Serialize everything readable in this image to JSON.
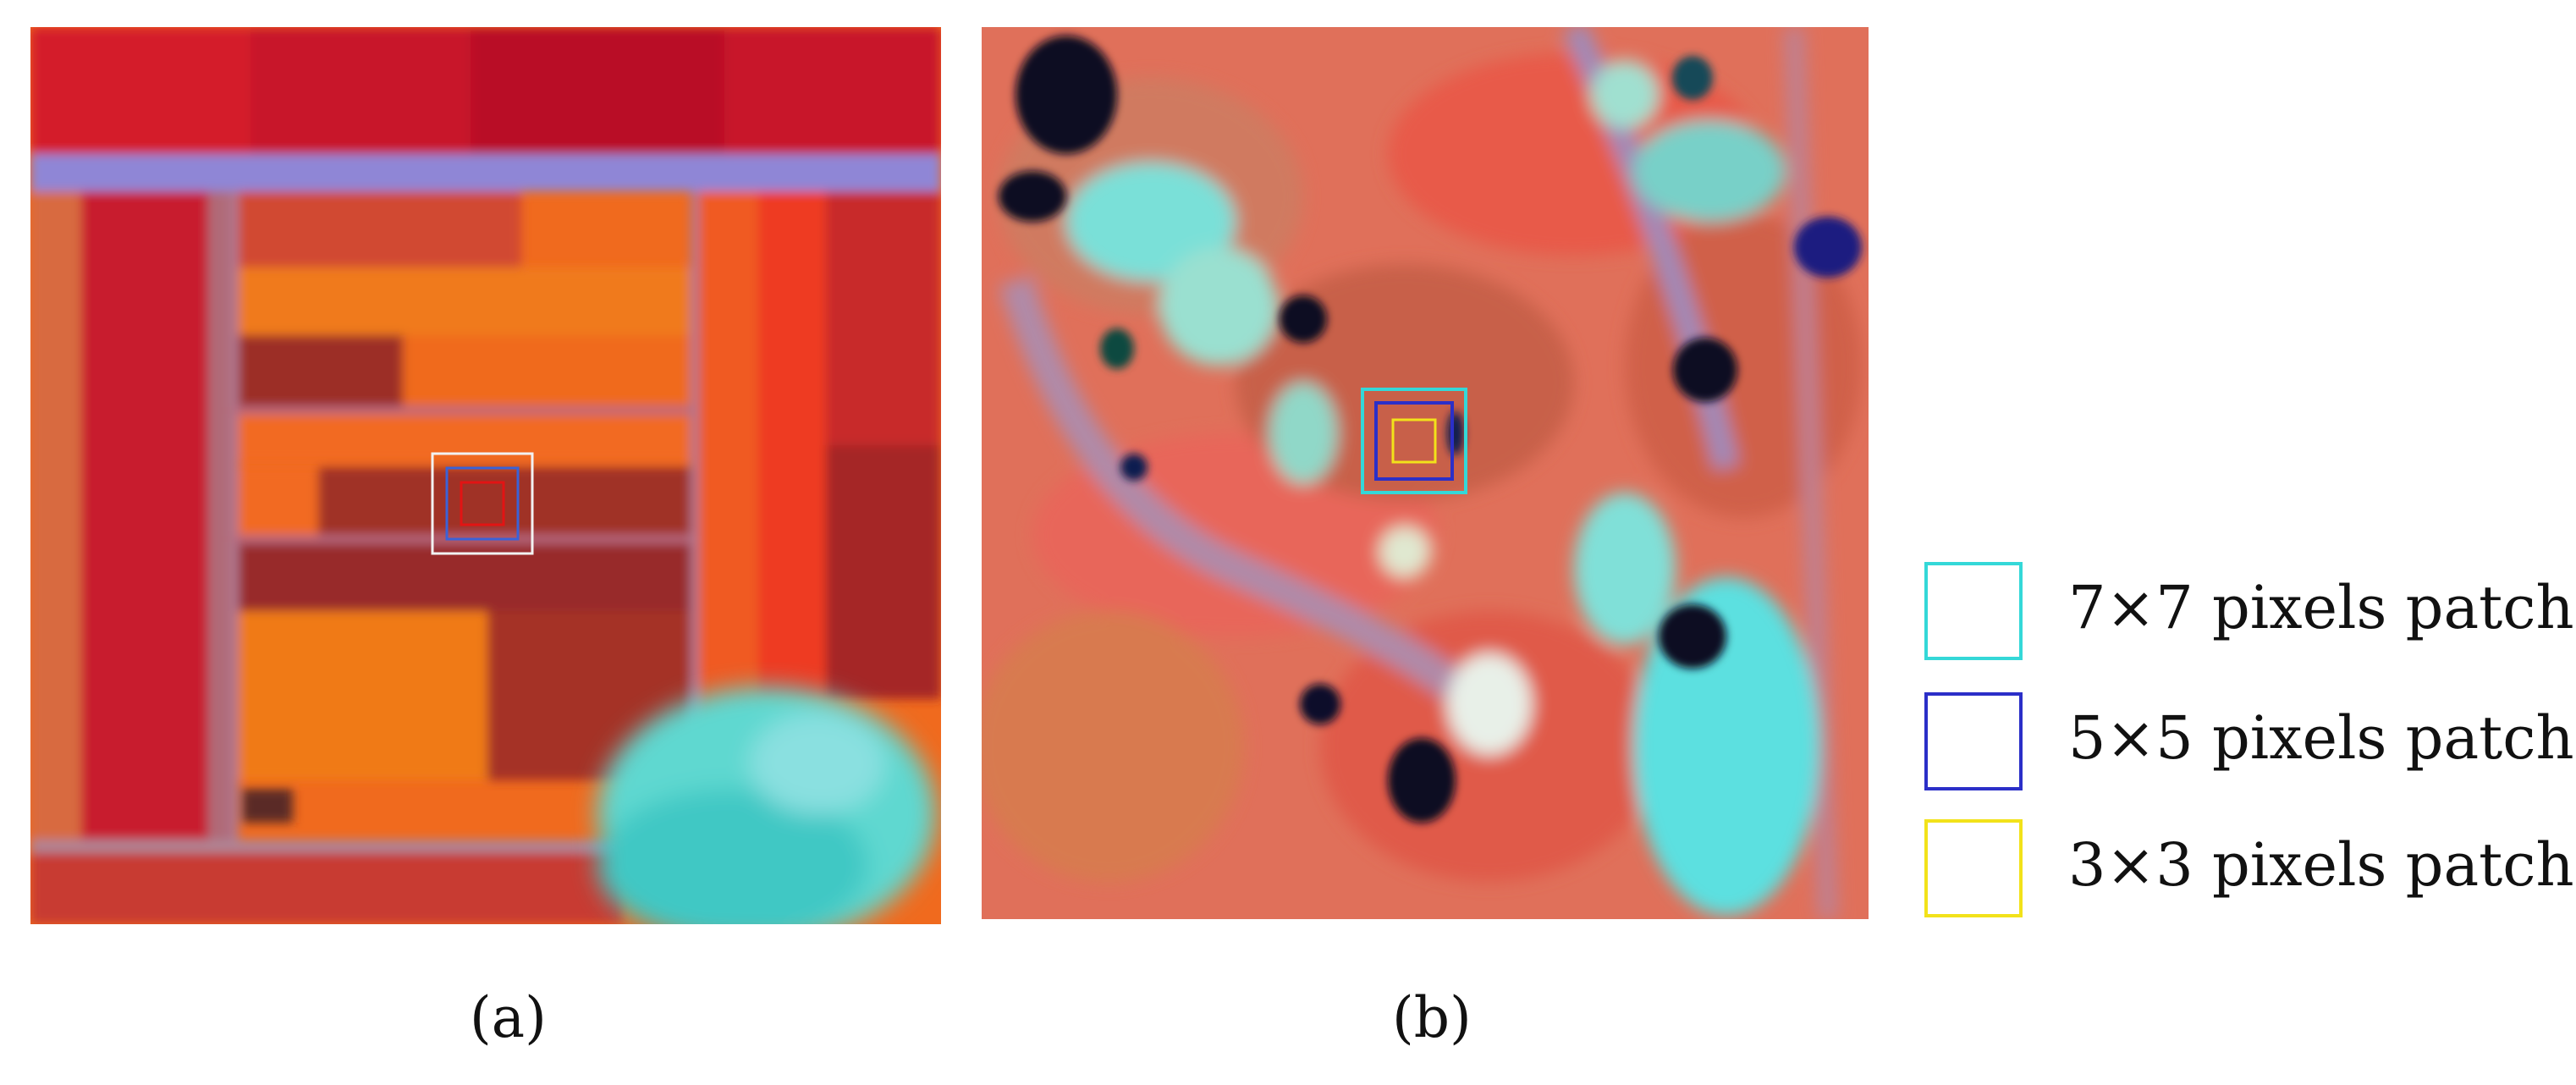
{
  "panels": [
    {
      "caption": "(a)",
      "patches": [
        {
          "size": 7,
          "color": "#f2f2f2"
        },
        {
          "size": 5,
          "color": "#3a62d8"
        },
        {
          "size": 3,
          "color": "#e21414"
        }
      ]
    },
    {
      "caption": "(b)",
      "patches": [
        {
          "size": 7,
          "color": "#34d8d8"
        },
        {
          "size": 5,
          "color": "#2b2fc8"
        },
        {
          "size": 3,
          "color": "#f2e21a"
        }
      ]
    }
  ],
  "legend": [
    {
      "label": "7×7 pixels patch",
      "color": "#34d8d8"
    },
    {
      "label": "5×5 pixels patch",
      "color": "#2b2fc8"
    },
    {
      "label": "3×3 pixels patch",
      "color": "#f2e21a"
    }
  ]
}
